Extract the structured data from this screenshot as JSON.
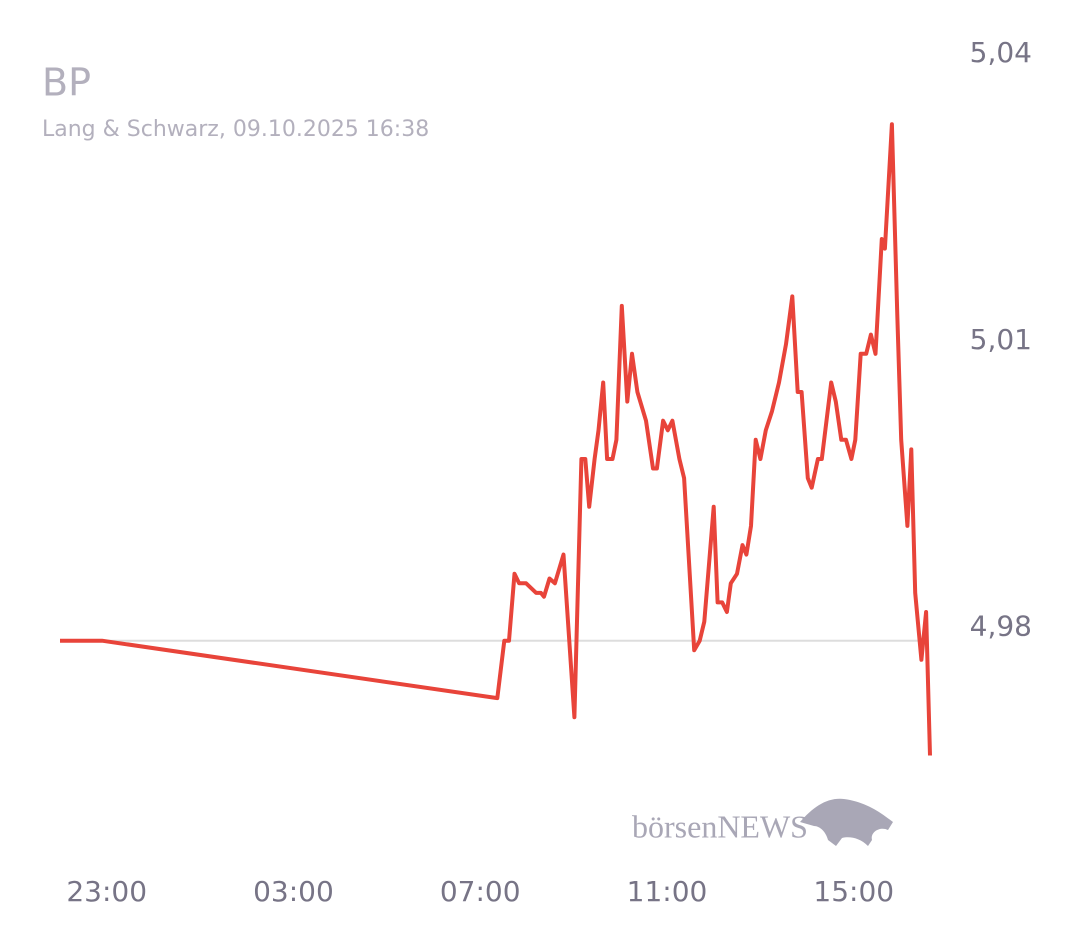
{
  "chart_data": {
    "type": "line",
    "title": "BP",
    "subtitle": "Lang & Schwarz, 09.10.2025 16:38",
    "watermark": "börsenNEWS",
    "x": [
      "22:00",
      "22:54",
      "07:22",
      "07:31",
      "07:37",
      "07:44",
      "07:50",
      "07:59",
      "08:12",
      "08:18",
      "08:22",
      "08:29",
      "08:36",
      "08:47",
      "09:01",
      "09:10",
      "09:15",
      "09:20",
      "09:27",
      "09:32",
      "09:38",
      "09:43",
      "09:50",
      "09:55",
      "10:02",
      "10:09",
      "10:15",
      "10:22",
      "10:33",
      "10:42",
      "10:47",
      "10:55",
      "11:01",
      "11:07",
      "11:16",
      "11:22",
      "11:35",
      "11:42",
      "11:48",
      "11:55",
      "12:00",
      "12:05",
      "12:11",
      "12:17",
      "12:22",
      "12:30",
      "12:37",
      "12:42",
      "12:48",
      "12:54",
      "13:00",
      "13:07",
      "13:15",
      "13:24",
      "13:33",
      "13:41",
      "13:48",
      "13:53",
      "14:01",
      "14:06",
      "14:14",
      "14:19",
      "14:25",
      "14:31",
      "14:37",
      "14:44",
      "14:50",
      "14:57",
      "15:02",
      "15:09",
      "15:16",
      "15:22",
      "15:28",
      "15:36",
      "15:40",
      "15:49",
      "15:56",
      "16:01",
      "16:09",
      "16:14",
      "16:19",
      "16:27",
      "16:33",
      "16:38"
    ],
    "series": [
      {
        "name": "BP",
        "color": "#e8443a",
        "values": [
          4.98,
          4.98,
          4.974,
          4.98,
          4.98,
          4.987,
          4.986,
          4.986,
          4.985,
          4.985,
          4.9846,
          4.9865,
          4.986,
          4.989,
          4.972,
          4.999,
          4.999,
          4.994,
          4.999,
          5.002,
          5.007,
          4.999,
          4.999,
          5.001,
          5.015,
          5.005,
          5.01,
          5.006,
          5.003,
          4.998,
          4.998,
          5.003,
          5.002,
          5.003,
          4.999,
          4.997,
          4.979,
          4.98,
          4.982,
          4.989,
          4.994,
          4.984,
          4.984,
          4.983,
          4.986,
          4.987,
          4.99,
          4.989,
          4.992,
          5.001,
          4.999,
          5.002,
          5.004,
          5.007,
          5.011,
          5.016,
          5.006,
          5.006,
          4.997,
          4.996,
          4.999,
          4.999,
          5.003,
          5.007,
          5.005,
          5.001,
          5.001,
          4.999,
          5.001,
          5.01,
          5.01,
          5.012,
          5.01,
          5.022,
          5.021,
          5.034,
          5.014,
          5.001,
          4.992,
          5.0,
          4.985,
          4.978,
          4.983,
          4.968
        ]
      }
    ],
    "xlim": [
      "22:00",
      "16:38"
    ],
    "xticks": [
      "23:00",
      "03:00",
      "07:00",
      "11:00",
      "15:00"
    ],
    "ylim": [
      4.96,
      5.045
    ],
    "yticks": [
      {
        "value": 4.98,
        "label": "4,98"
      },
      {
        "value": 5.01,
        "label": "5,01"
      },
      {
        "value": 5.04,
        "label": "5,04"
      }
    ],
    "reference_line": 4.98
  }
}
